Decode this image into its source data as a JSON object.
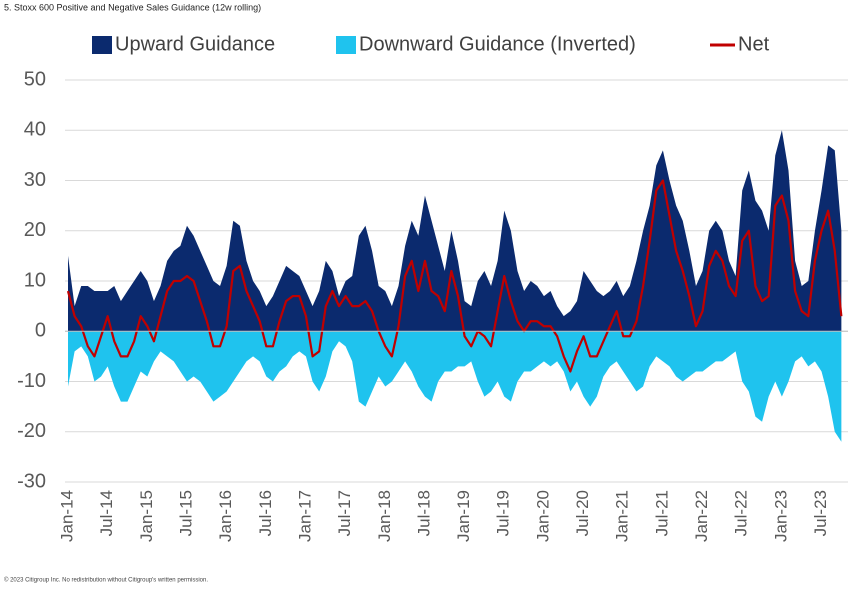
{
  "chart_data": {
    "type": "area",
    "title": "5. Stoxx 600 Positive and Negative Sales Guidance (12w rolling)",
    "source": "© 2023 Citigroup Inc. No redistribution without Citigroup's written permission.",
    "categories": [
      "Jan-14",
      null,
      null,
      null,
      null,
      null,
      "Jul-14",
      null,
      null,
      null,
      null,
      null,
      "Jan-15",
      null,
      null,
      null,
      null,
      null,
      "Jul-15",
      null,
      null,
      null,
      null,
      null,
      "Jan-16",
      null,
      null,
      null,
      null,
      null,
      "Jul-16",
      null,
      null,
      null,
      null,
      null,
      "Jan-17",
      null,
      null,
      null,
      null,
      null,
      "Jul-17",
      null,
      null,
      null,
      null,
      null,
      "Jan-18",
      null,
      null,
      null,
      null,
      null,
      "Jul-18",
      null,
      null,
      null,
      null,
      null,
      "Jan-19",
      null,
      null,
      null,
      null,
      null,
      "Jul-19",
      null,
      null,
      null,
      null,
      null,
      "Jan-20",
      null,
      null,
      null,
      null,
      null,
      "Jul-20",
      null,
      null,
      null,
      null,
      null,
      "Jan-21",
      null,
      null,
      null,
      null,
      null,
      "Jul-21",
      null,
      null,
      null,
      null,
      null,
      "Jan-22",
      null,
      null,
      null,
      null,
      null,
      "Jul-22",
      null,
      null,
      null,
      null,
      null,
      "Jan-23",
      null,
      null,
      null,
      null,
      null,
      "Jul-23",
      null,
      null,
      null
    ],
    "series": [
      {
        "name": "Upward Guidance",
        "color": "#0b2a6e",
        "kind": "area",
        "values": [
          15,
          5,
          9,
          9,
          8,
          8,
          8,
          9,
          6,
          8,
          10,
          12,
          10,
          6,
          9,
          14,
          16,
          17,
          21,
          19,
          16,
          13,
          10,
          9,
          13,
          22,
          21,
          14,
          10,
          8,
          5,
          7,
          10,
          13,
          12,
          11,
          8,
          5,
          8,
          14,
          12,
          7,
          10,
          11,
          19,
          21,
          16,
          9,
          8,
          5,
          9,
          17,
          22,
          19,
          27,
          22,
          17,
          12,
          20,
          14,
          6,
          5,
          10,
          12,
          9,
          14,
          24,
          20,
          12,
          8,
          10,
          9,
          7,
          8,
          5,
          3,
          4,
          6,
          12,
          10,
          8,
          7,
          8,
          10,
          7,
          9,
          14,
          20,
          25,
          33,
          36,
          30,
          25,
          22,
          16,
          9,
          12,
          20,
          22,
          20,
          14,
          11,
          28,
          32,
          26,
          24,
          20,
          35,
          40,
          32,
          14,
          9,
          10,
          20,
          28,
          37,
          36,
          20
        ]
      },
      {
        "name": "Downward Guidance (Inverted)",
        "color": "#1fc3ee",
        "kind": "area",
        "values": [
          -11,
          -4,
          -3,
          -5,
          -10,
          -9,
          -7,
          -11,
          -14,
          -14,
          -11,
          -8,
          -9,
          -6,
          -4,
          -5,
          -6,
          -8,
          -10,
          -9,
          -10,
          -12,
          -14,
          -13,
          -12,
          -10,
          -8,
          -6,
          -5,
          -6,
          -9,
          -10,
          -8,
          -7,
          -5,
          -4,
          -5,
          -10,
          -12,
          -9,
          -4,
          -2,
          -3,
          -6,
          -14,
          -15,
          -12,
          -9,
          -11,
          -10,
          -8,
          -6,
          -8,
          -11,
          -13,
          -14,
          -10,
          -8,
          -8,
          -7,
          -7,
          -6,
          -10,
          -13,
          -12,
          -10,
          -13,
          -14,
          -10,
          -8,
          -8,
          -7,
          -6,
          -7,
          -6,
          -8,
          -12,
          -10,
          -13,
          -15,
          -13,
          -9,
          -7,
          -6,
          -8,
          -10,
          -12,
          -11,
          -7,
          -5,
          -6,
          -7,
          -9,
          -10,
          -9,
          -8,
          -8,
          -7,
          -6,
          -6,
          -5,
          -4,
          -10,
          -12,
          -17,
          -18,
          -13,
          -10,
          -13,
          -10,
          -6,
          -5,
          -7,
          -6,
          -8,
          -13,
          -20,
          -22
        ]
      },
      {
        "name": "Net",
        "color": "#c00000",
        "kind": "line",
        "values": [
          8,
          3,
          1,
          -3,
          -5,
          -1,
          3,
          -2,
          -5,
          -5,
          -2,
          3,
          1,
          -2,
          3,
          8,
          10,
          10,
          11,
          10,
          6,
          2,
          -3,
          -3,
          1,
          12,
          13,
          8,
          5,
          2,
          -3,
          -3,
          2,
          6,
          7,
          7,
          3,
          -5,
          -4,
          5,
          8,
          5,
          7,
          5,
          5,
          6,
          4,
          0,
          -3,
          -5,
          1,
          11,
          14,
          8,
          14,
          8,
          7,
          4,
          12,
          7,
          -1,
          -3,
          0,
          -1,
          -3,
          4,
          11,
          6,
          2,
          0,
          2,
          2,
          1,
          1,
          -1,
          -5,
          -8,
          -4,
          -1,
          -5,
          -5,
          -2,
          1,
          4,
          -1,
          -1,
          2,
          9,
          18,
          28,
          30,
          23,
          16,
          12,
          7,
          1,
          4,
          13,
          16,
          14,
          9,
          7,
          18,
          20,
          9,
          6,
          7,
          25,
          27,
          22,
          8,
          4,
          3,
          14,
          20,
          24,
          16,
          3
        ]
      }
    ],
    "ylim": [
      -30,
      50
    ],
    "yticks": [
      -30,
      -20,
      -10,
      0,
      10,
      20,
      30,
      40,
      50
    ],
    "grid": true,
    "legend": "top"
  }
}
